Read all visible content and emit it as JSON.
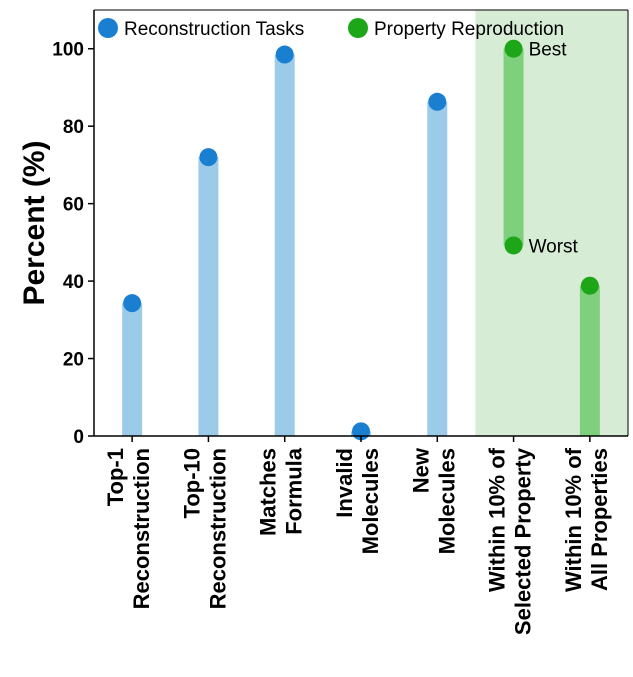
{
  "chart_data": {
    "type": "bar",
    "ylabel": "Percent (%)",
    "xlabel": "",
    "ylim": [
      0,
      110
    ],
    "yticks": [
      0,
      20,
      40,
      60,
      80,
      100
    ],
    "grid": false,
    "legend_placement": "top",
    "categories": [
      [
        "Top-1",
        "Reconstruction"
      ],
      [
        "Top-10",
        "Reconstruction"
      ],
      [
        "Matches",
        "Formula"
      ],
      [
        "Invalid",
        "Molecules"
      ],
      [
        "New",
        "Molecules"
      ],
      [
        "Within 10% of",
        "Selected Property"
      ],
      [
        "Within 10% of",
        "All Properties"
      ]
    ],
    "series": [
      {
        "name": "Reconstruction Tasks",
        "color": "#1a7fd1",
        "bar_color": "#9ccbe9",
        "points": [
          {
            "category_index": 0,
            "low": 0,
            "high": 34.3
          },
          {
            "category_index": 1,
            "low": 0,
            "high": 72.0
          },
          {
            "category_index": 2,
            "low": 0,
            "high": 98.5
          },
          {
            "category_index": 3,
            "low": 0,
            "high": 1.2
          },
          {
            "category_index": 4,
            "low": 0,
            "high": 86.3
          }
        ]
      },
      {
        "name": "Property Reproduction",
        "color": "#1ea619",
        "bar_color": "#7fd07d",
        "shade_color": "#d6ecd5",
        "points": [
          {
            "category_index": 5,
            "low": 49.2,
            "high": 100.0,
            "low_label": "Worst",
            "high_label": "Best"
          },
          {
            "category_index": 6,
            "low": 0,
            "high": 38.8
          }
        ]
      }
    ]
  }
}
